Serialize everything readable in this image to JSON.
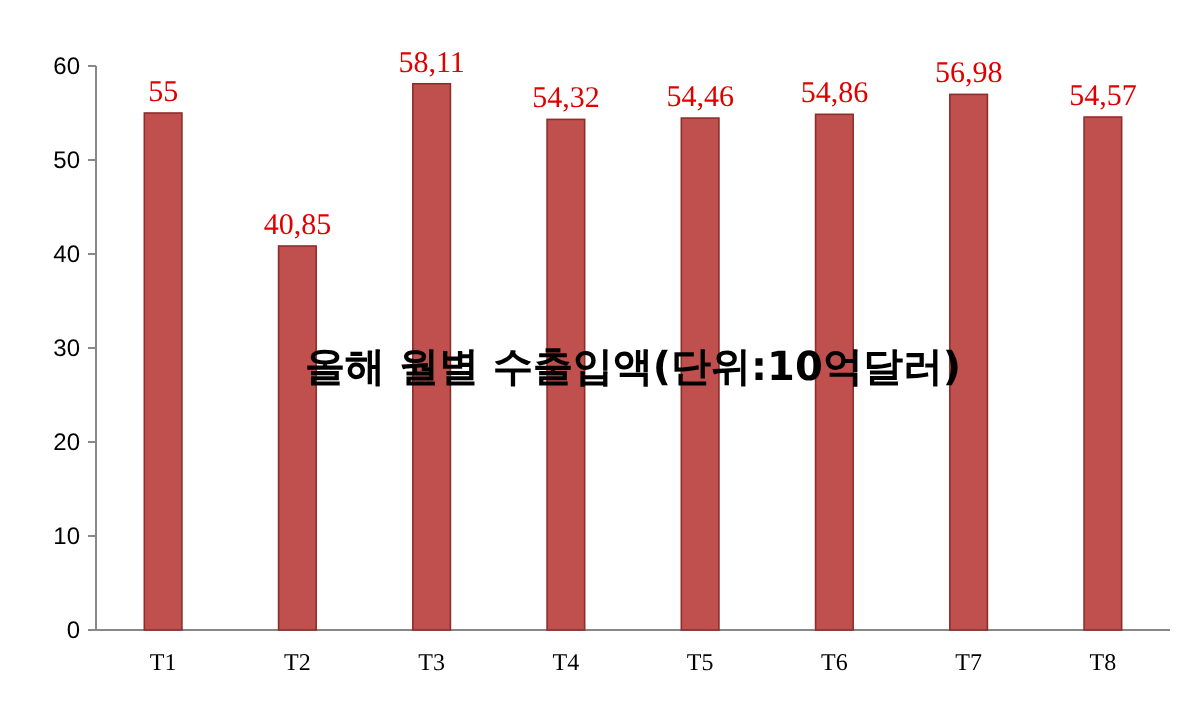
{
  "chart_data": {
    "type": "bar",
    "title": "올해 월별 수출입액(단위:10억달러)",
    "categories": [
      "T1",
      "T2",
      "T3",
      "T4",
      "T5",
      "T6",
      "T7",
      "T8"
    ],
    "values": [
      55,
      40.85,
      58.11,
      54.32,
      54.46,
      54.86,
      56.98,
      54.57
    ],
    "value_labels": [
      "55",
      "40,85",
      "58,11",
      "54,32",
      "54,46",
      "54,86",
      "56,98",
      "54,57"
    ],
    "color": "#c0504d",
    "ylim": [
      0,
      60
    ],
    "yticks": [
      0,
      10,
      20,
      30,
      40,
      50,
      60
    ]
  }
}
